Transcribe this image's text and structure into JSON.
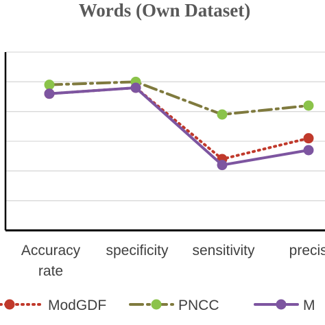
{
  "chart_data": {
    "type": "line",
    "title": "Words (Own Dataset)",
    "categories": [
      "Accuracy rate",
      "specificity",
      "sensitivity",
      "precision"
    ],
    "category_lines": [
      [
        "Accuracy",
        "rate"
      ],
      [
        "specificity"
      ],
      [
        "sensitivity"
      ],
      [
        "precisi"
      ]
    ],
    "ylim": [
      0,
      6
    ],
    "grid": true,
    "legend_position": "bottom",
    "series": [
      {
        "name": "ModGDF",
        "values": [
          4.6,
          4.8,
          2.4,
          3.1
        ],
        "color": "#c0392b",
        "style": "dotted",
        "marker": "circle"
      },
      {
        "name": "PNCC",
        "values": [
          4.9,
          5.0,
          3.9,
          4.2
        ],
        "color": "#7f7a3e",
        "style": "dash-dot",
        "marker": "circle",
        "marker_color": "#8bc34a"
      },
      {
        "name": "M",
        "values": [
          4.6,
          4.8,
          2.2,
          2.7
        ],
        "color": "#7d55a0",
        "style": "solid",
        "marker": "circle"
      }
    ]
  }
}
